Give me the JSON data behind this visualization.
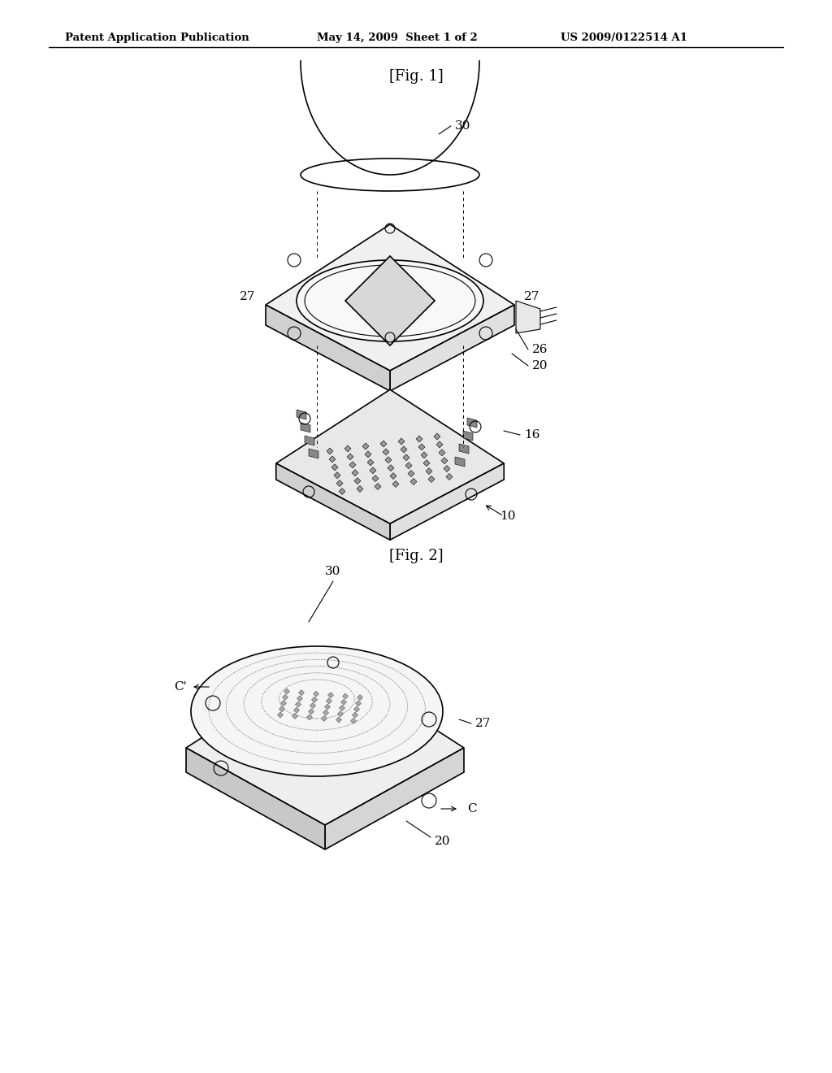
{
  "background_color": "#ffffff",
  "line_color": "#000000",
  "light_gray": "#aaaaaa",
  "mid_gray": "#888888",
  "dark_gray": "#555555",
  "header_text": "Patent Application Publication",
  "header_date": "May 14, 2009  Sheet 1 of 2",
  "header_patent": "US 2009/0122514 A1",
  "fig1_label": "[Fig. 1]",
  "fig2_label": "[Fig. 2]",
  "labels": {
    "30_fig1": "30",
    "27_left": "27",
    "27_right": "27",
    "26": "26",
    "20": "20",
    "16": "16",
    "10": "10",
    "30_fig2": "30",
    "27_fig2": "27",
    "20_fig2": "20",
    "C_top": "C'",
    "C_bottom": "C"
  }
}
